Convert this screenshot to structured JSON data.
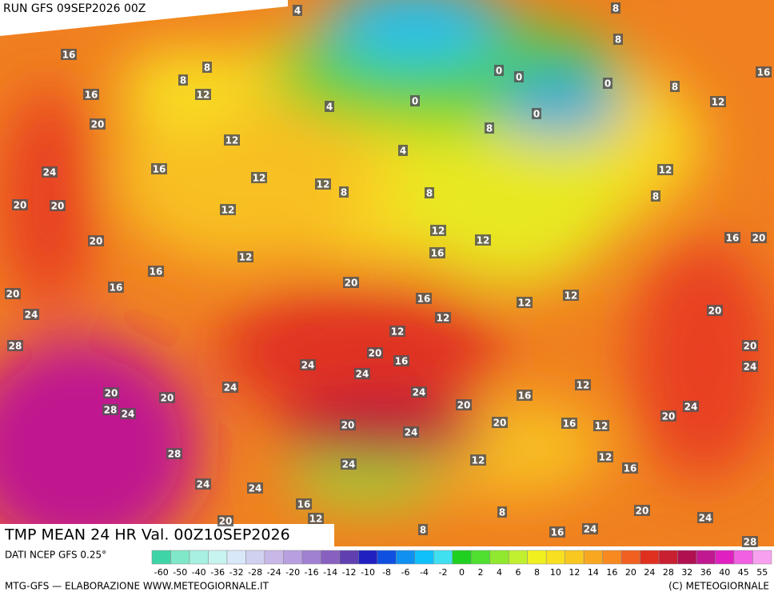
{
  "header": {
    "run": "RUN GFS 09SEP2026 00Z"
  },
  "map": {
    "title": "TMP MEAN 24 HR Val. 00Z10SEP2026",
    "labels": [
      16,
      16,
      20,
      24,
      20,
      20,
      20,
      8,
      8,
      12,
      12,
      16,
      12,
      12,
      12,
      4,
      4,
      12,
      8,
      0,
      4,
      8,
      12,
      16,
      12,
      8,
      0,
      0,
      0,
      0,
      8,
      8,
      8,
      16,
      12,
      12,
      8,
      16,
      20,
      20,
      20,
      24,
      16,
      16,
      20,
      24,
      28,
      20,
      16,
      12,
      12,
      12,
      12,
      20,
      16,
      24,
      24,
      24,
      20,
      20,
      28,
      24,
      24,
      20,
      16,
      12,
      16,
      12,
      20,
      24,
      20,
      24,
      20,
      24,
      28,
      24,
      24,
      12,
      12,
      16,
      20,
      24,
      24,
      16,
      8,
      8,
      16,
      12,
      20,
      28
    ]
  },
  "footer": {
    "source": "DATI NCEP GFS 0.25°",
    "credit": "MTG-GFS — ELABORAZIONE WWW.METEOGIORNALE.IT",
    "copyright": "(C) METEOGIORNALE"
  },
  "colorbar": {
    "ticks": [
      -60,
      -50,
      -40,
      -36,
      -32,
      -28,
      -24,
      -20,
      -16,
      -14,
      -12,
      -10,
      -8,
      -6,
      -4,
      -2,
      0,
      2,
      4,
      6,
      8,
      10,
      12,
      14,
      16,
      20,
      24,
      28,
      32,
      36,
      40,
      45,
      55
    ],
    "colors": [
      "#3fd4a8",
      "#7fe8c8",
      "#a8f0e0",
      "#c8f4f0",
      "#d8e8f8",
      "#d0d0f0",
      "#c8b8e8",
      "#b8a0e0",
      "#a080d0",
      "#8860c0",
      "#6040b0",
      "#2020c0",
      "#1050e0",
      "#1090f0",
      "#10c0f8",
      "#40e0f0",
      "#20d020",
      "#50e030",
      "#90e830",
      "#c0f030",
      "#f0f020",
      "#f8e020",
      "#f8c820",
      "#f8a820",
      "#f88820",
      "#f06020",
      "#e03020",
      "#c82030",
      "#b01050",
      "#c01890",
      "#e020c0",
      "#f060e0",
      "#f8a0f0"
    ]
  }
}
